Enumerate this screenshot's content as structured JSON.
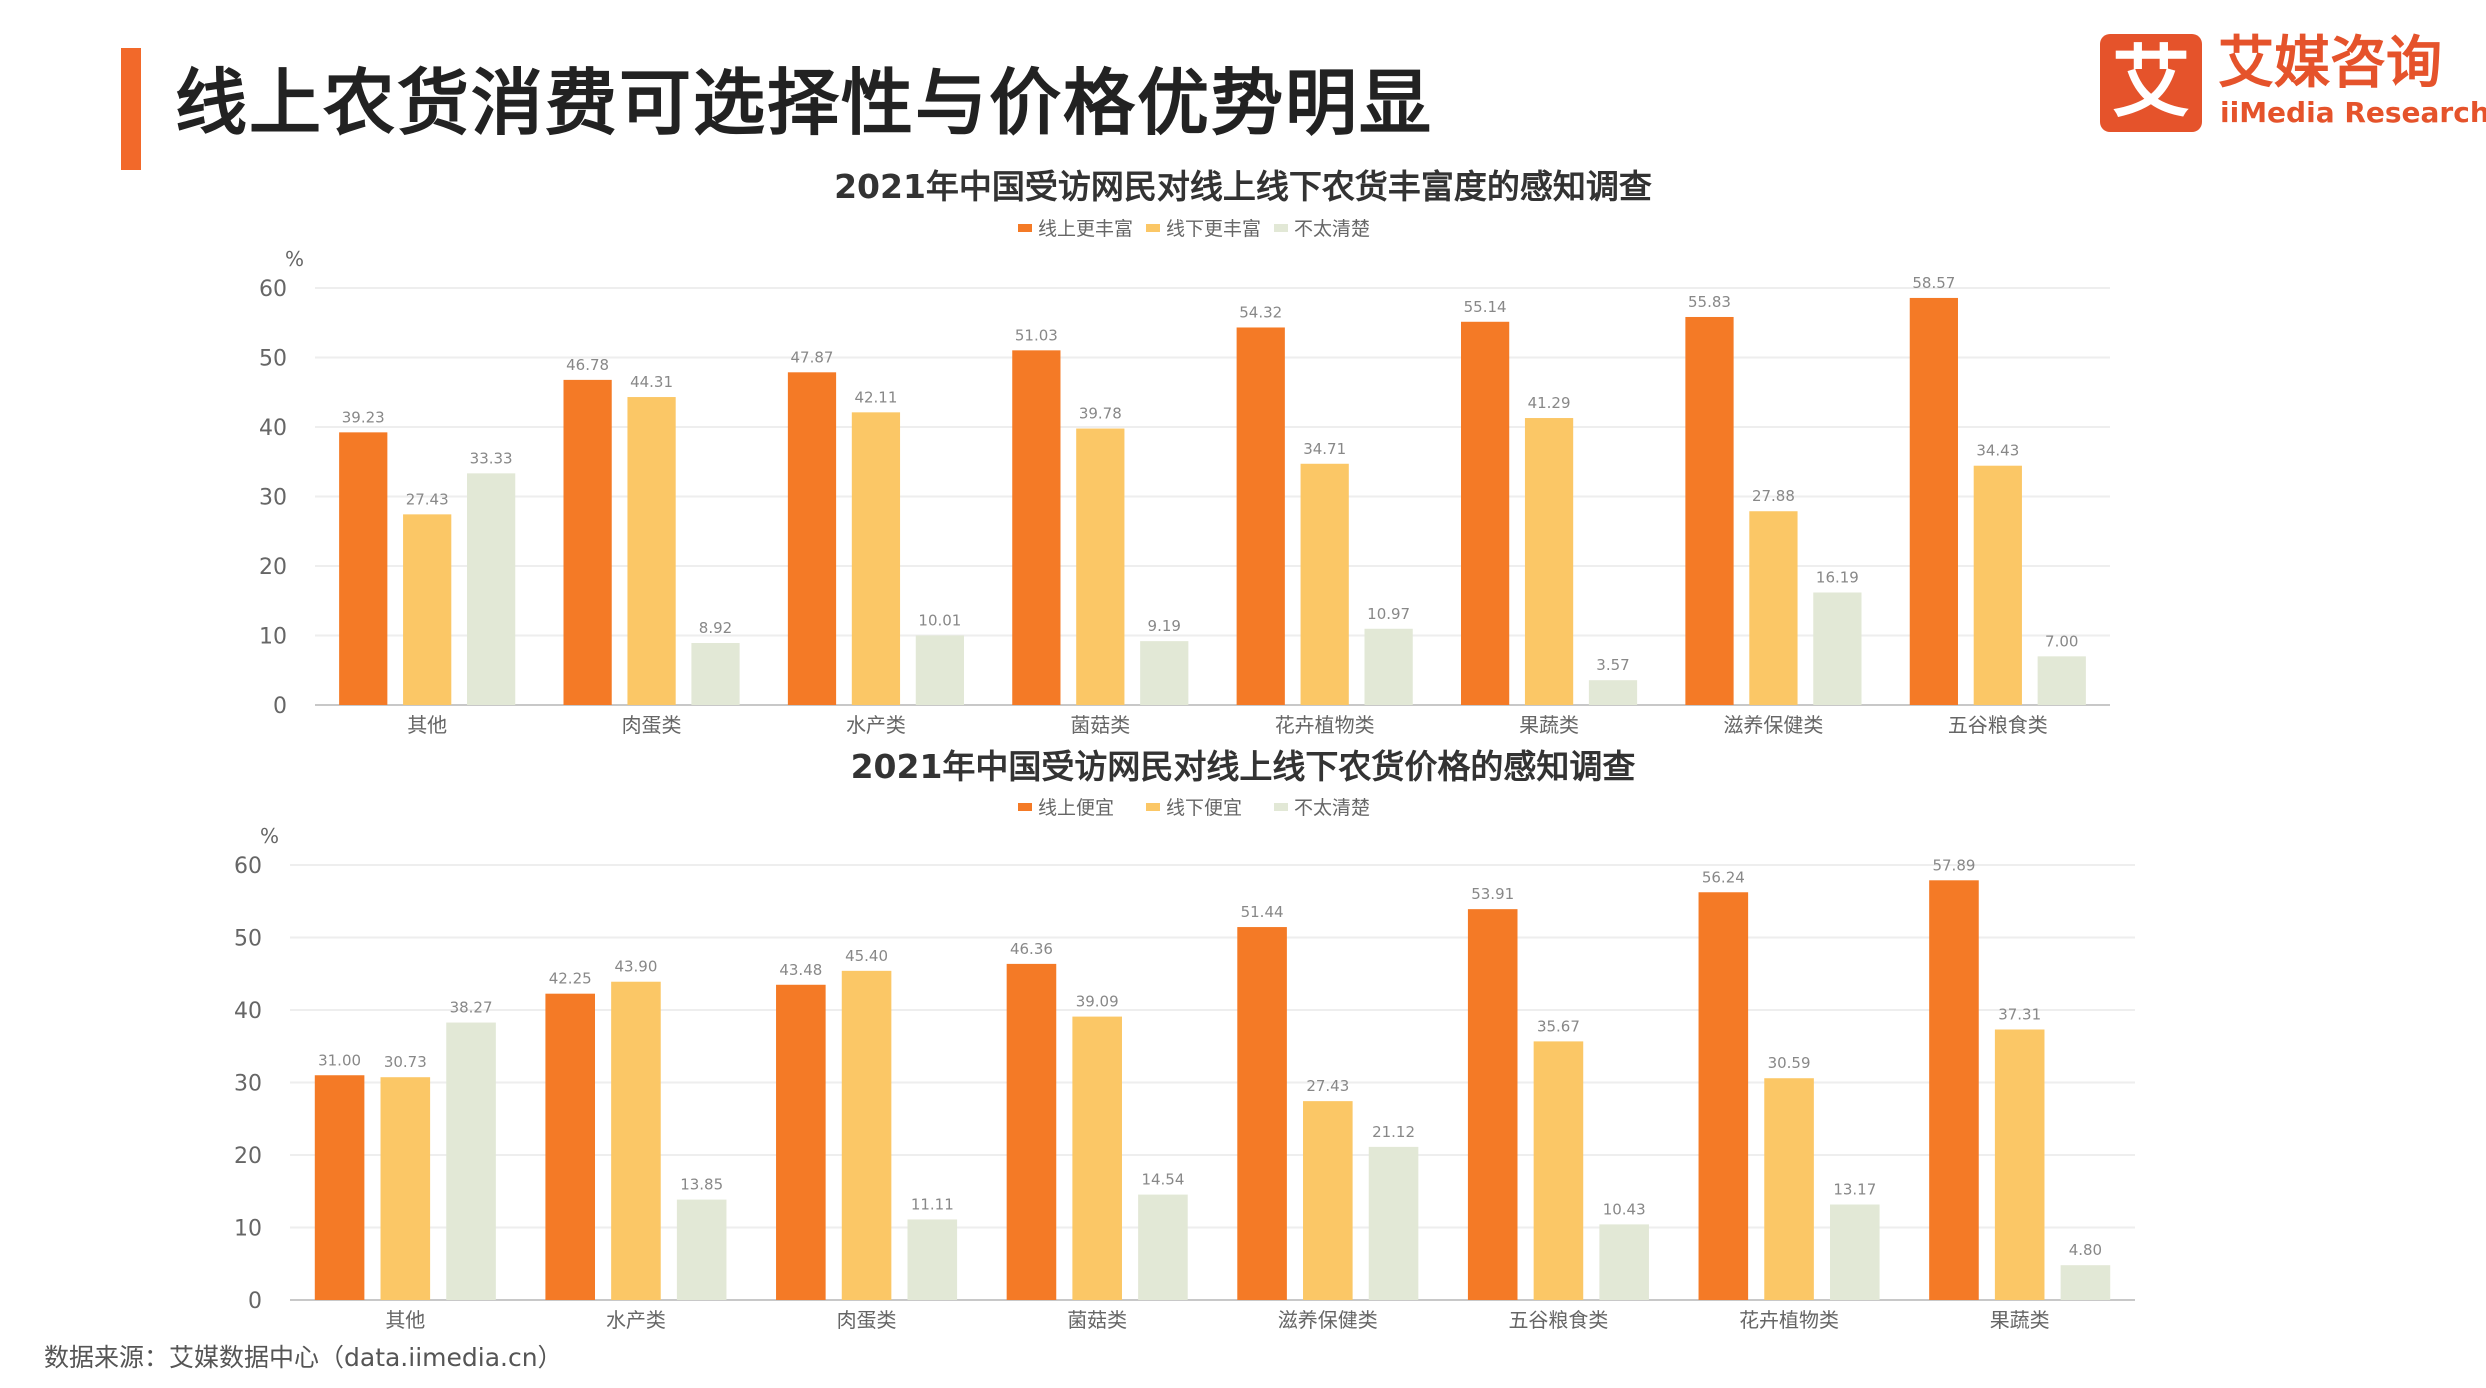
{
  "page": {
    "title": "线上农货消费可选择性与价格优势明显",
    "source": "数据来源：艾媒数据中心（data.iimedia.cn）"
  },
  "logo": {
    "mark": "艾",
    "cn": "艾媒咨询",
    "en": "iiMedia Research"
  },
  "colors": {
    "accent": "#f2692a",
    "series1": "#f47a26",
    "series2": "#fbc766",
    "series3": "#e2e8d6",
    "logo": "#e5532b"
  },
  "chart_data": [
    {
      "type": "bar",
      "title": "2021年中国受访网民对线上线下农货丰富度的感知调查",
      "ylabel": "%",
      "ylim": [
        0,
        60
      ],
      "yticks": [
        0,
        10,
        20,
        30,
        40,
        50,
        60
      ],
      "grid": true,
      "legend": "top-center",
      "categories": [
        "其他",
        "肉蛋类",
        "水产类",
        "菌菇类",
        "花卉植物类",
        "果蔬类",
        "滋养保健类",
        "五谷粮食类"
      ],
      "series": [
        {
          "name": "线上更丰富",
          "values": [
            39.23,
            46.78,
            47.87,
            51.03,
            54.32,
            55.14,
            55.83,
            58.57
          ]
        },
        {
          "name": "线下更丰富",
          "values": [
            27.43,
            44.31,
            42.11,
            39.78,
            34.71,
            41.29,
            27.88,
            34.43
          ]
        },
        {
          "name": "不太清楚",
          "values": [
            33.33,
            8.92,
            10.01,
            9.19,
            10.97,
            3.57,
            16.19,
            7.0
          ]
        }
      ]
    },
    {
      "type": "bar",
      "title": "2021年中国受访网民对线上线下农货价格的感知调查",
      "ylabel": "%",
      "ylim": [
        0,
        60
      ],
      "yticks": [
        0,
        10,
        20,
        30,
        40,
        50,
        60
      ],
      "grid": true,
      "legend": "top-center",
      "categories": [
        "其他",
        "水产类",
        "肉蛋类",
        "菌菇类",
        "滋养保健类",
        "五谷粮食类",
        "花卉植物类",
        "果蔬类"
      ],
      "series": [
        {
          "name": "线上便宜",
          "values": [
            31.0,
            42.25,
            43.48,
            46.36,
            51.44,
            53.91,
            56.24,
            57.89
          ]
        },
        {
          "name": "线下便宜",
          "values": [
            30.73,
            43.9,
            45.4,
            39.09,
            27.43,
            35.67,
            30.59,
            37.31
          ]
        },
        {
          "name": "不太清楚",
          "values": [
            38.27,
            13.85,
            11.11,
            14.54,
            21.12,
            10.43,
            13.17,
            4.8
          ]
        }
      ]
    }
  ]
}
